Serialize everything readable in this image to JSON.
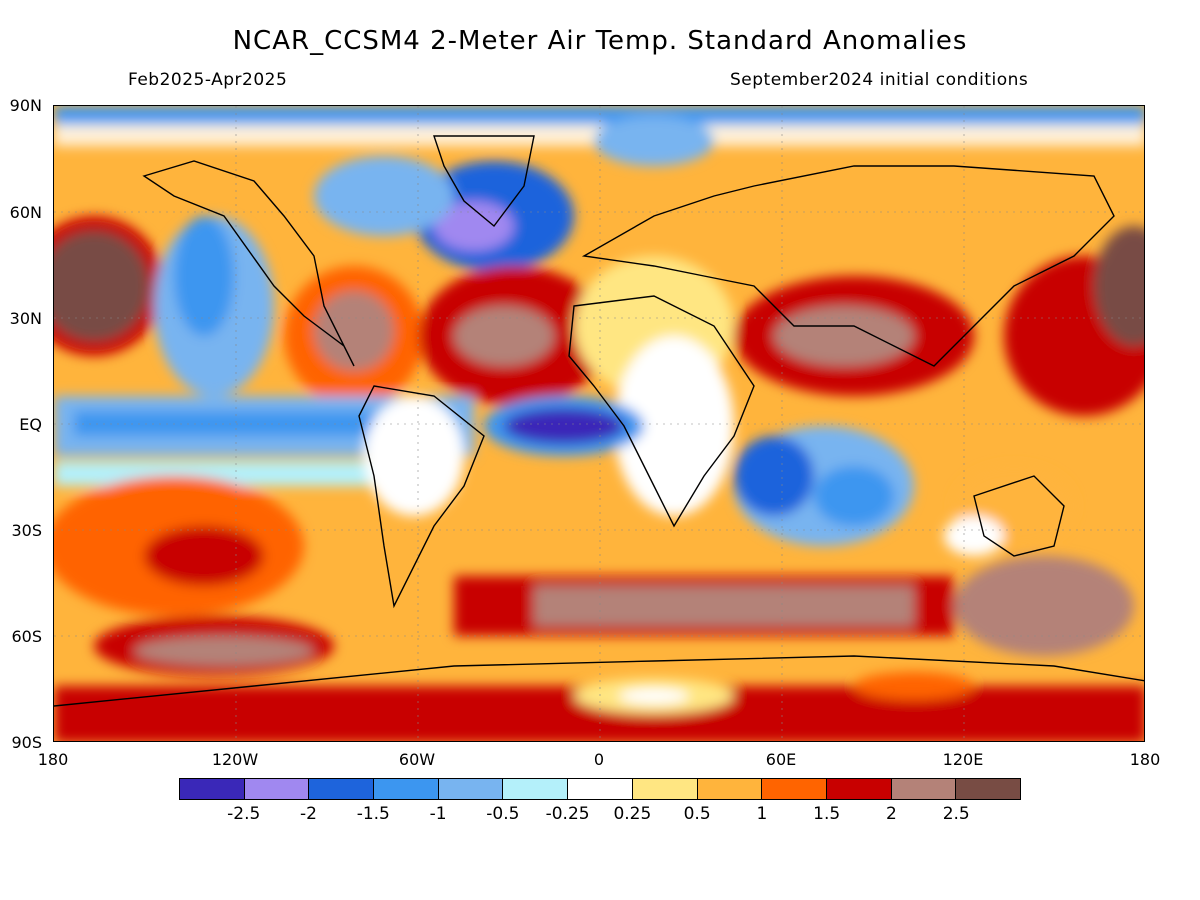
{
  "header": {
    "title": "NCAR_CCSM4 2-Meter Air Temp. Standard Anomalies",
    "period": "Feb2025-Apr2025",
    "init": "September2024 initial conditions"
  },
  "axes": {
    "lat_labels": [
      "90N",
      "60N",
      "30N",
      "EQ",
      "30S",
      "60S",
      "90S"
    ],
    "lon_labels": [
      "180",
      "120W",
      "60W",
      "0",
      "60E",
      "120E",
      "180"
    ]
  },
  "legend": {
    "colors": [
      "#3a28b8",
      "#a088f0",
      "#1e64dc",
      "#3c96f0",
      "#78b4f0",
      "#b4f0fa",
      "#ffffff",
      "#ffe682",
      "#ffb43c",
      "#ff6400",
      "#c80000",
      "#b48278",
      "#784c44"
    ],
    "labels": [
      "-2.5",
      "-2",
      "-1.5",
      "-1",
      "-0.5",
      "-0.25",
      "0.25",
      "0.5",
      "1",
      "1.5",
      "2",
      "2.5"
    ]
  }
}
